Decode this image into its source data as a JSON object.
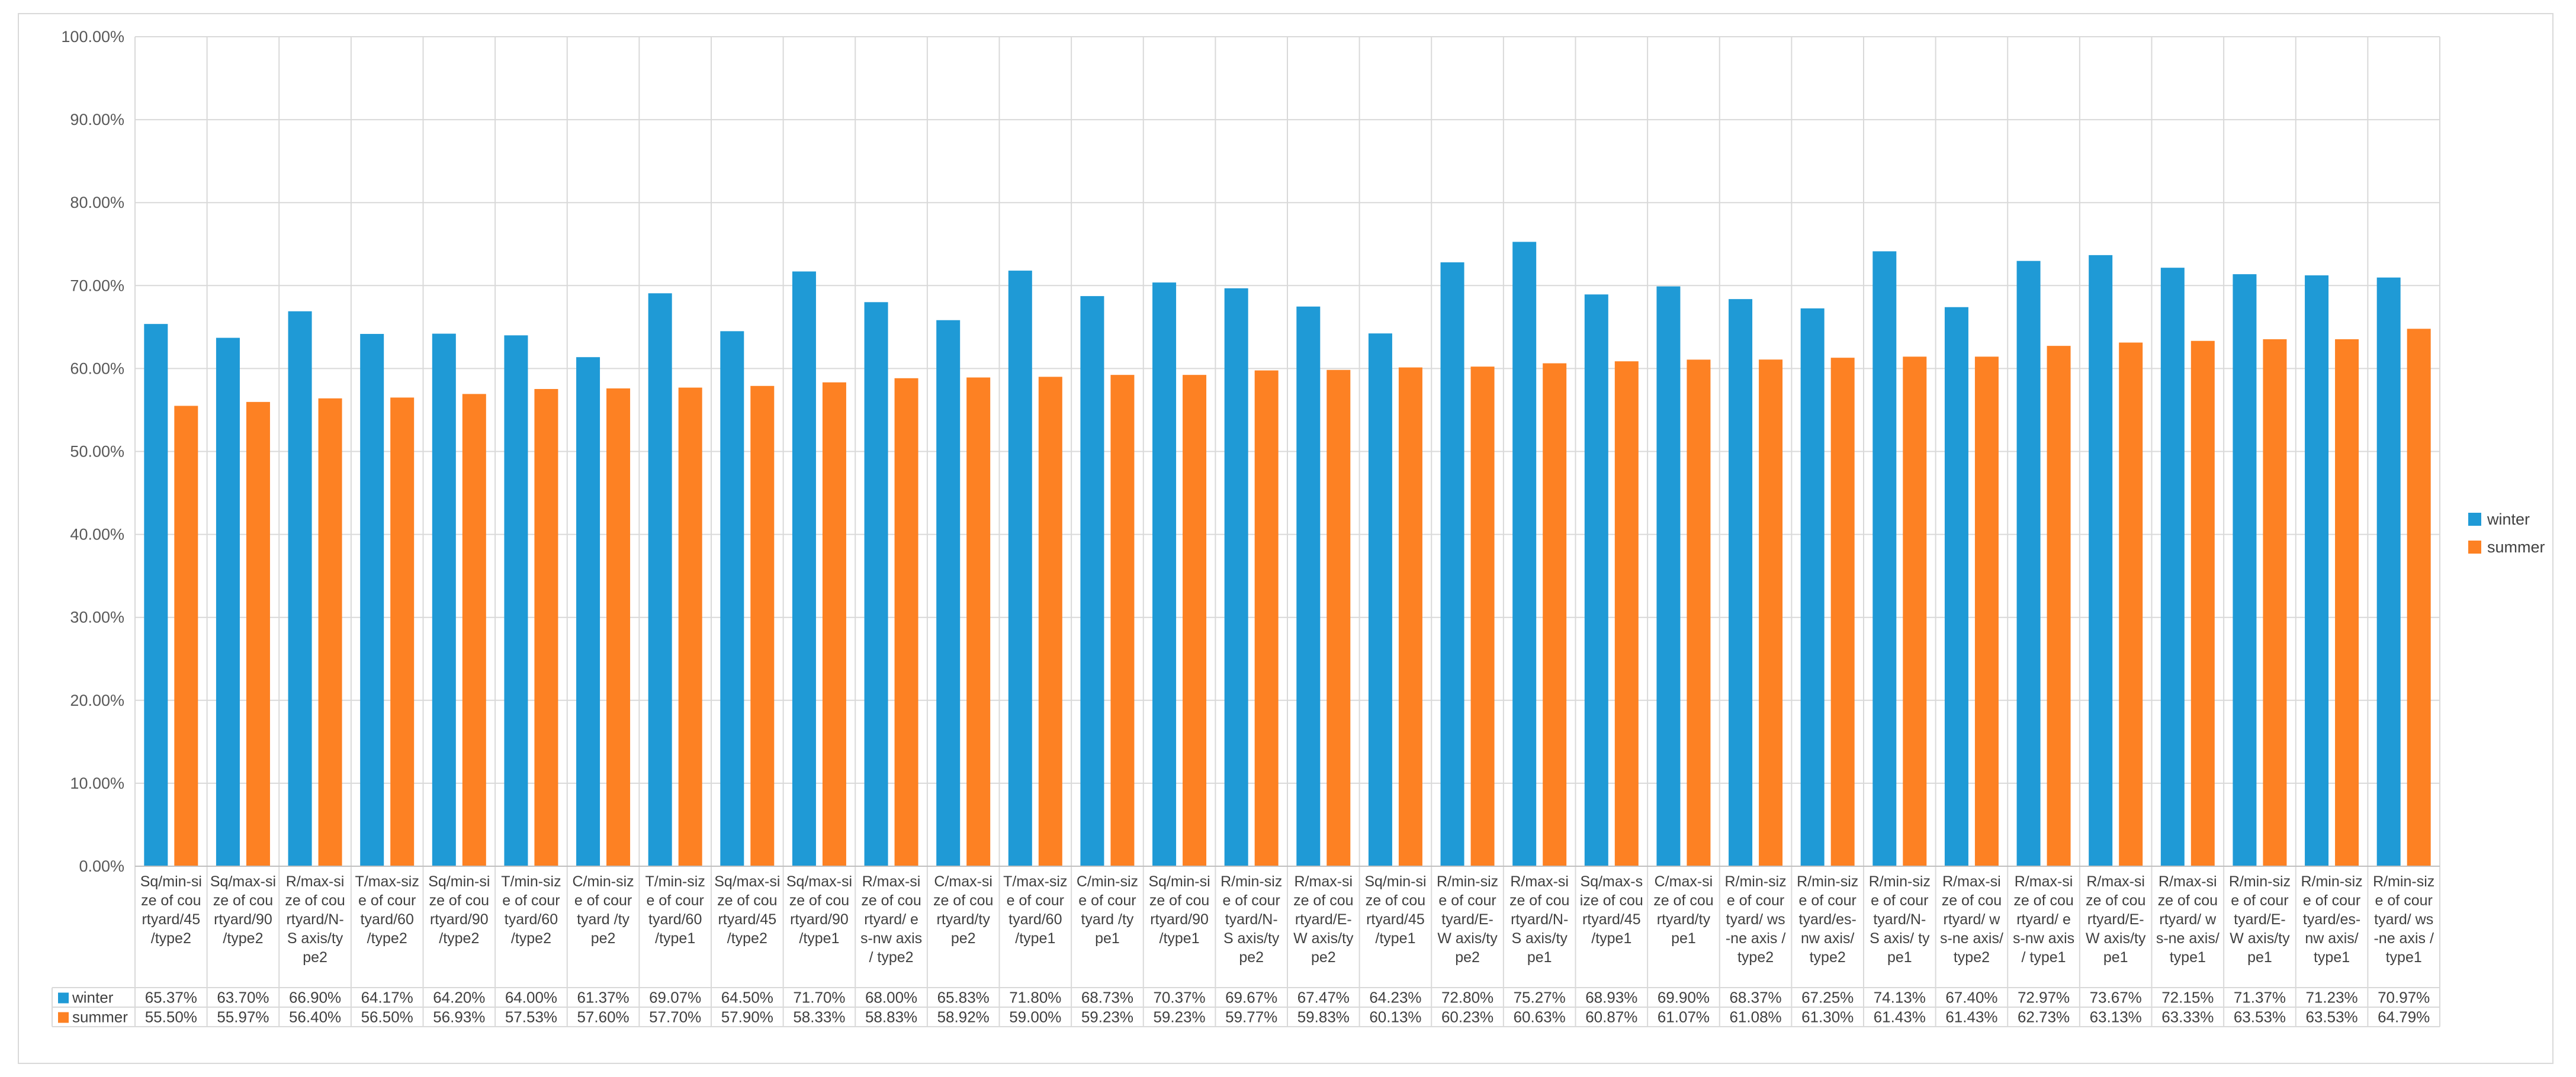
{
  "chart_data": {
    "type": "bar",
    "ylim": [
      0,
      100
    ],
    "ytick_step": 10,
    "ytick_labels": [
      "0.00%",
      "10.00%",
      "20.00%",
      "30.00%",
      "40.00%",
      "50.00%",
      "60.00%",
      "70.00%",
      "80.00%",
      "90.00%",
      "100.00%"
    ],
    "grid": true,
    "legend_position": "right",
    "data_table": true,
    "categories": [
      [
        "Sq/min-si",
        "ze of cou",
        "rtyard/45",
        "/type2"
      ],
      [
        "Sq/max-si",
        "ze of cou",
        "rtyard/90",
        "/type2"
      ],
      [
        "R/max-si",
        "ze of cou",
        "rtyard/N-",
        "S axis/ty",
        "pe2"
      ],
      [
        "T/max-siz",
        "e of cour",
        "tyard/60",
        "/type2"
      ],
      [
        "Sq/min-si",
        "ze of cou",
        "rtyard/90",
        "/type2"
      ],
      [
        "T/min-siz",
        "e of cour",
        "tyard/60",
        "/type2"
      ],
      [
        "C/min-siz",
        "e of cour",
        "tyard /ty",
        "pe2"
      ],
      [
        "T/min-siz",
        "e of cour",
        "tyard/60",
        "/type1"
      ],
      [
        "Sq/max-si",
        "ze of cou",
        "rtyard/45",
        "/type2"
      ],
      [
        "Sq/max-si",
        "ze of cou",
        "rtyard/90",
        "/type1"
      ],
      [
        "R/max-si",
        "ze of cou",
        "rtyard/ e",
        "s-nw axis",
        "/ type2"
      ],
      [
        "C/max-si",
        "ze of cou",
        "rtyard/ty",
        "pe2"
      ],
      [
        "T/max-siz",
        "e of cour",
        "tyard/60",
        "/type1"
      ],
      [
        "C/min-siz",
        "e of cour",
        "tyard /ty",
        "pe1"
      ],
      [
        "Sq/min-si",
        "ze of cou",
        "rtyard/90",
        "/type1"
      ],
      [
        "R/min-siz",
        "e of cour",
        "tyard/N-",
        "S axis/ty",
        "pe2"
      ],
      [
        "R/max-si",
        "ze of cou",
        "rtyard/E-",
        "W axis/ty",
        "pe2"
      ],
      [
        "Sq/min-si",
        "ze of cou",
        "rtyard/45",
        "/type1"
      ],
      [
        "R/min-siz",
        "e of cour",
        "tyard/E-",
        "W axis/ty",
        "pe2"
      ],
      [
        "R/max-si",
        "ze of cou",
        "rtyard/N-",
        "S axis/ty",
        "pe1"
      ],
      [
        "Sq/max-s",
        "ize of cou",
        "rtyard/45",
        "/type1"
      ],
      [
        "C/max-si",
        "ze of cou",
        "rtyard/ty",
        "pe1"
      ],
      [
        "R/min-siz",
        "e of cour",
        "tyard/ ws",
        "-ne axis /",
        "type2"
      ],
      [
        "R/min-siz",
        "e of cour",
        "tyard/es-",
        "nw axis/",
        "type2"
      ],
      [
        "R/min-siz",
        "e of cour",
        "tyard/N-",
        "S axis/ ty",
        "pe1"
      ],
      [
        "R/max-si",
        "ze of cou",
        "rtyard/ w",
        "s-ne axis/",
        "type2"
      ],
      [
        "R/max-si",
        "ze of cou",
        "rtyard/ e",
        "s-nw axis",
        "/ type1"
      ],
      [
        "R/max-si",
        "ze of cou",
        "rtyard/E-",
        "W axis/ty",
        "pe1"
      ],
      [
        "R/max-si",
        "ze of cou",
        "rtyard/ w",
        "s-ne axis/",
        "type1"
      ],
      [
        "R/min-siz",
        "e of cour",
        "tyard/E-",
        "W axis/ty",
        "pe1"
      ],
      [
        "R/min-siz",
        "e of cour",
        "tyard/es-",
        "nw axis/",
        "type1"
      ],
      [
        "R/min-siz",
        "e of cour",
        "tyard/ ws",
        "-ne axis /",
        "type1"
      ]
    ],
    "series": [
      {
        "name": "winter",
        "color": "#1f9ad6",
        "values": [
          65.37,
          63.7,
          66.9,
          64.17,
          64.2,
          64.0,
          61.37,
          69.07,
          64.5,
          71.7,
          68.0,
          65.83,
          71.8,
          68.73,
          70.37,
          69.67,
          67.47,
          64.23,
          72.8,
          75.27,
          68.93,
          69.9,
          68.37,
          67.25,
          74.13,
          67.4,
          72.97,
          73.67,
          72.15,
          71.37,
          71.23,
          70.97
        ],
        "labels": [
          "65.37%",
          "63.70%",
          "66.90%",
          "64.17%",
          "64.20%",
          "64.00%",
          "61.37%",
          "69.07%",
          "64.50%",
          "71.70%",
          "68.00%",
          "65.83%",
          "71.80%",
          "68.73%",
          "70.37%",
          "69.67%",
          "67.47%",
          "64.23%",
          "72.80%",
          "75.27%",
          "68.93%",
          "69.90%",
          "68.37%",
          "67.25%",
          "74.13%",
          "67.40%",
          "72.97%",
          "73.67%",
          "72.15%",
          "71.37%",
          "71.23%",
          "70.97%"
        ]
      },
      {
        "name": "summer",
        "color": "#fd8123",
        "values": [
          55.5,
          55.97,
          56.4,
          56.5,
          56.93,
          57.53,
          57.6,
          57.7,
          57.9,
          58.33,
          58.83,
          58.92,
          59.0,
          59.23,
          59.23,
          59.77,
          59.83,
          60.13,
          60.23,
          60.63,
          60.87,
          61.07,
          61.08,
          61.3,
          61.43,
          61.43,
          62.73,
          63.13,
          63.33,
          63.53,
          63.53,
          64.79
        ],
        "labels": [
          "55.50%",
          "55.97%",
          "56.40%",
          "56.50%",
          "56.93%",
          "57.53%",
          "57.60%",
          "57.70%",
          "57.90%",
          "58.33%",
          "58.83%",
          "58.92%",
          "59.00%",
          "59.23%",
          "59.23%",
          "59.77%",
          "59.83%",
          "60.13%",
          "60.23%",
          "60.63%",
          "60.87%",
          "61.07%",
          "61.08%",
          "61.30%",
          "61.43%",
          "61.43%",
          "62.73%",
          "63.13%",
          "63.33%",
          "63.53%",
          "63.53%",
          "64.79%"
        ]
      }
    ]
  }
}
